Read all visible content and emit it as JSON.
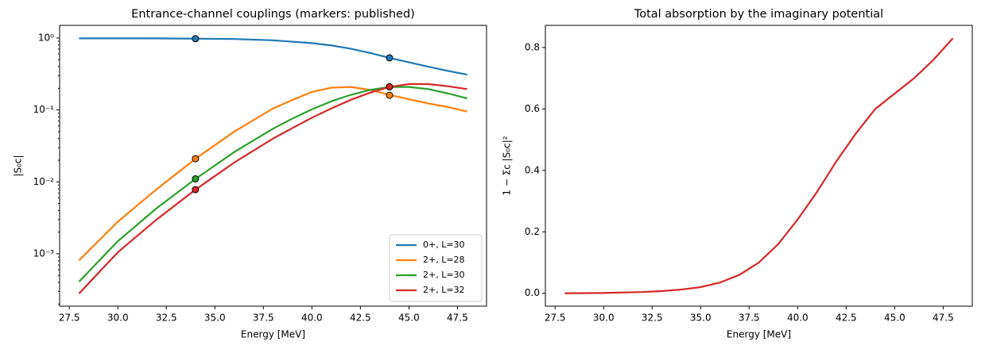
{
  "chart_data": [
    {
      "type": "line",
      "title": "Entrance-channel couplings (markers: published)",
      "xlabel": "Energy [MeV]",
      "ylabel": "|S₀c|",
      "log_y": true,
      "legend": "lower right",
      "x": [
        28,
        30,
        32,
        34,
        36,
        38,
        39,
        40,
        41,
        42,
        43,
        44,
        45,
        46,
        47,
        48
      ],
      "xlim": [
        27,
        49
      ],
      "xticks": [
        27.5,
        {
          "value": 30,
          "label": "30.0"
        },
        32.5,
        {
          "value": 35,
          "label": "35.0"
        },
        37.5,
        {
          "value": 40,
          "label": "40.0"
        },
        42.5,
        {
          "value": 45,
          "label": "45.0"
        },
        47.5
      ],
      "ylim": [
        0.000187,
        1.5
      ],
      "yticks": [
        {
          "value": 0.001,
          "label": "10⁻³"
        },
        {
          "value": 0.01,
          "label": "10⁻²"
        },
        {
          "value": 0.1,
          "label": "10⁻¹"
        },
        {
          "value": 1,
          "label": "10⁰"
        }
      ],
      "series": [
        {
          "name": "0+, L=30",
          "color": "#1f77b4",
          "values": [
            0.99,
            0.99,
            0.99,
            0.98,
            0.97,
            0.93,
            0.89,
            0.85,
            0.79,
            0.71,
            0.62,
            0.53,
            0.46,
            0.4,
            0.35,
            0.31
          ],
          "markers": {
            "x": [
              34,
              44
            ],
            "values": [
              0.98,
              0.53
            ]
          }
        },
        {
          "name": "2+, L=28",
          "color": "#ff7f0e",
          "values": [
            0.00081,
            0.0028,
            0.0079,
            0.021,
            0.05,
            0.105,
            0.138,
            0.178,
            0.204,
            0.209,
            0.19,
            0.162,
            0.141,
            0.123,
            0.11,
            0.095
          ],
          "markers": {
            "x": [
              34,
              44
            ],
            "values": [
              0.021,
              0.16
            ]
          }
        },
        {
          "name": "2+, L=30",
          "color": "#2ca02c",
          "values": [
            0.00041,
            0.0015,
            0.0043,
            0.011,
            0.026,
            0.055,
            0.076,
            0.102,
            0.132,
            0.162,
            0.19,
            0.209,
            0.209,
            0.195,
            0.17,
            0.145
          ],
          "markers": {
            "x": [
              34,
              44
            ],
            "values": [
              0.011,
              0.21
            ]
          }
        },
        {
          "name": "2+, L=32",
          "color": "#d62728",
          "values": [
            0.00028,
            0.00105,
            0.003,
            0.0078,
            0.0186,
            0.04,
            0.056,
            0.078,
            0.105,
            0.138,
            0.174,
            0.209,
            0.229,
            0.229,
            0.214,
            0.195
          ],
          "markers": {
            "x": [
              34,
              44
            ],
            "values": [
              0.0078,
              0.21
            ]
          }
        }
      ]
    },
    {
      "type": "line",
      "title": "Total absorption by the imaginary potential",
      "xlabel": "Energy [MeV]",
      "ylabel": "1 − Σc |S₀c|²",
      "x": [
        28,
        30,
        32,
        33,
        34,
        35,
        36,
        37,
        38,
        39,
        40,
        41,
        42,
        43,
        44,
        45,
        46,
        47,
        48
      ],
      "xlim": [
        27,
        49
      ],
      "xticks": [
        27.5,
        {
          "value": 30,
          "label": "30.0"
        },
        32.5,
        {
          "value": 35,
          "label": "35.0"
        },
        37.5,
        {
          "value": 40,
          "label": "40.0"
        },
        42.5,
        {
          "value": 45,
          "label": "45.0"
        },
        47.5
      ],
      "ylim": [
        -0.042,
        0.872
      ],
      "yticks": [
        {
          "value": 0,
          "label": "0.0"
        },
        0.2,
        0.4,
        0.6,
        0.8
      ],
      "series": [
        {
          "color": "#d62728",
          "values": [
            0,
            0.001,
            0.004,
            0.007,
            0.012,
            0.02,
            0.035,
            0.06,
            0.1,
            0.16,
            0.24,
            0.33,
            0.43,
            0.52,
            0.6,
            0.65,
            0.7,
            0.76,
            0.83
          ]
        }
      ]
    }
  ]
}
